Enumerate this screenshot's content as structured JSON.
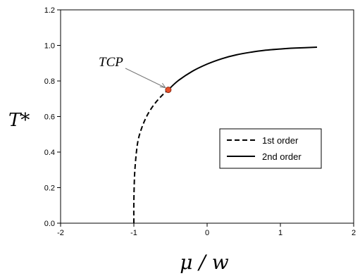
{
  "chart_data": {
    "type": "line",
    "title": "",
    "xlabel": "μ / w",
    "ylabel": "T*",
    "xlim": [
      -2,
      2
    ],
    "ylim": [
      0.0,
      1.2
    ],
    "x_ticks": [
      -2,
      -1,
      0,
      1,
      2
    ],
    "x_tick_labels": [
      "-2",
      "-1",
      "0",
      "1",
      "2"
    ],
    "y_ticks": [
      0.0,
      0.2,
      0.4,
      0.6,
      0.8,
      1.0,
      1.2
    ],
    "y_tick_labels": [
      "0.0",
      "0.2",
      "0.4",
      "0.6",
      "0.8",
      "1.0",
      "1.2"
    ],
    "grid": false,
    "legend_position": "lower-right",
    "series": [
      {
        "name": "1st order",
        "style": "dashed",
        "color": "#000000",
        "x": [
          -1.0,
          -1.0,
          -0.99,
          -0.97,
          -0.94,
          -0.88,
          -0.8,
          -0.7,
          -0.6,
          -0.53
        ],
        "y": [
          0.0,
          0.12,
          0.27,
          0.38,
          0.47,
          0.55,
          0.62,
          0.68,
          0.725,
          0.75
        ]
      },
      {
        "name": "2nd order",
        "style": "solid",
        "color": "#000000",
        "x": [
          -0.53,
          -0.4,
          -0.2,
          0.0,
          0.2,
          0.4,
          0.6,
          0.8,
          1.0,
          1.2,
          1.5
        ],
        "y": [
          0.75,
          0.8,
          0.855,
          0.895,
          0.925,
          0.947,
          0.962,
          0.973,
          0.98,
          0.985,
          0.99
        ]
      }
    ],
    "annotations": [
      {
        "text": "TCP",
        "point": {
          "x": -0.53,
          "y": 0.75
        },
        "marker_color": "#e8502a"
      }
    ]
  }
}
